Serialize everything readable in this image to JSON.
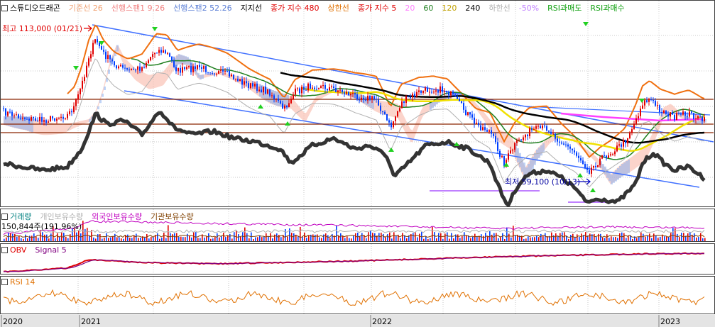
{
  "legend": {
    "items": [
      {
        "label": "스튜디오드래곤",
        "color": "#000000"
      },
      {
        "label": "기준선 26",
        "color": "#f0a070"
      },
      {
        "label": "선행스팬1 9.26",
        "color": "#f08080"
      },
      {
        "label": "선행스팬2 52.26",
        "color": "#5b7fd6"
      },
      {
        "label": "지지선",
        "color": "#000000"
      },
      {
        "label": "종가 지수 480",
        "color": "#e00000"
      },
      {
        "label": "상한선",
        "color": "#e07000"
      },
      {
        "label": "종가 지수 5",
        "color": "#e00000"
      },
      {
        "label": "20",
        "color": "#ff80ff"
      },
      {
        "label": "60",
        "color": "#208020"
      },
      {
        "label": "120",
        "color": "#e0c000"
      },
      {
        "label": "240",
        "color": "#000000"
      },
      {
        "label": "하한선",
        "color": "#c0c0c0"
      },
      {
        "label": "-50%",
        "color": "#c080ff"
      },
      {
        "label": "RSI과매도",
        "color": "#10a010"
      },
      {
        "label": "RSI과매수",
        "color": "#10a010"
      }
    ]
  },
  "annotations": {
    "high": "최고 113,000 (01/21)",
    "low": "최저 59,100 (10/13)"
  },
  "volume_panel": {
    "legend": [
      {
        "label": "거래량",
        "color": "#008080"
      },
      {
        "label": "개인보유수량",
        "color": "#c0c0c0"
      },
      {
        "label": "외국인보유수량",
        "color": "#c000c0"
      },
      {
        "label": "기관보유수량",
        "color": "#804000"
      }
    ],
    "value_label": "150,844주(191.96%)"
  },
  "obv_panel": {
    "legend": [
      {
        "label": "OBV",
        "color": "#e00000"
      },
      {
        "label": "Signal 5",
        "color": "#800080"
      }
    ]
  },
  "rsi_panel": {
    "legend": [
      {
        "label": "RSI 14",
        "color": "#e07000"
      }
    ]
  },
  "x_axis": {
    "labels": [
      "2020",
      "2021",
      "2022",
      "2023"
    ]
  },
  "colors": {
    "background": "#ffffff",
    "grid": "#c8c8c8",
    "panel_border": "#404040",
    "axis_bar": "#e4e4e4",
    "up": "#e00000",
    "down": "#0040ff",
    "channel": "#4070ff",
    "support": "#8b2500",
    "black_line": "#333333",
    "upper_band": "#f07010",
    "ma20": "#ff40ff",
    "ma60": "#208020",
    "ma120": "#f0e000",
    "ma240": "#000000",
    "cloud_pos": "#f8b0a0",
    "cloud_neg": "#8ab0f0",
    "rsi": "#e07000",
    "obv": "#e00000",
    "obv_signal": "#800080",
    "signal_arrow": "#20d020"
  },
  "chart_data": [
    {
      "type": "line",
      "title": "스튜디오드래곤",
      "ylabel": "",
      "series": [
        {
          "name": "스튜디오드래곤",
          "x": [
            "2020-07",
            "2020-10",
            "2021-01",
            "2021-04",
            "2021-07",
            "2021-10",
            "2022-01",
            "2022-04",
            "2022-07",
            "2022-10",
            "2023-01",
            "2023-03"
          ],
          "values": [
            82000,
            85000,
            113000,
            95000,
            92000,
            88000,
            85000,
            89000,
            80000,
            59100,
            88000,
            81000
          ]
        },
        {
          "name": "240",
          "x": [
            "2021-10",
            "2022-01",
            "2022-04",
            "2022-07",
            "2022-10",
            "2023-01",
            "2023-03"
          ],
          "values": [
            90000,
            89000,
            88000,
            85000,
            80000,
            79000,
            80000
          ]
        }
      ],
      "annotations": [
        {
          "text": "최고 113,000 (01/21)",
          "x": "2021-01",
          "y": 113000
        },
        {
          "text": "최저 59,100 (10/13)",
          "x": "2022-10",
          "y": 59100
        }
      ]
    },
    {
      "type": "bar",
      "title": "거래량",
      "value_label": "150,844주(191.96%)"
    },
    {
      "type": "line",
      "title": "OBV",
      "series": [
        {
          "name": "OBV"
        },
        {
          "name": "Signal 5"
        }
      ]
    },
    {
      "type": "line",
      "title": "RSI 14",
      "series": [
        {
          "name": "RSI 14"
        }
      ]
    }
  ]
}
